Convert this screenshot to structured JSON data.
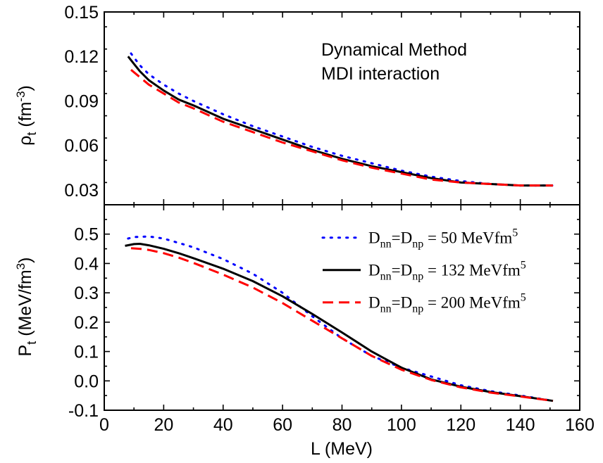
{
  "chart_data": [
    {
      "type": "line",
      "panel": "top",
      "annotation_lines": [
        "Dynamical Method",
        "MDI interaction"
      ],
      "ylabel_parts": {
        "base": "ρ",
        "sub": "t",
        "unit_open": " (fm",
        "sup": "-3",
        "unit_close": ")"
      },
      "ylim": [
        0.02,
        0.15
      ],
      "yticks": [
        0.03,
        0.06,
        0.09,
        0.12,
        0.15
      ],
      "ytick_labels": [
        "0.03",
        "0.06",
        "0.09",
        "0.12",
        "0.15"
      ],
      "xlim": [
        0,
        160
      ],
      "grid": false,
      "series": [
        {
          "key": "d50",
          "color": "#0000ff",
          "style": "dotted",
          "x": [
            9,
            12,
            15,
            20,
            25,
            30,
            40,
            50,
            60,
            70,
            80,
            90,
            100,
            110,
            120,
            130,
            140,
            151
          ],
          "y": [
            0.122,
            0.114,
            0.108,
            0.101,
            0.095,
            0.09,
            0.081,
            0.073,
            0.066,
            0.059,
            0.053,
            0.048,
            0.043,
            0.039,
            0.036,
            0.034,
            0.033,
            0.033
          ]
        },
        {
          "key": "d132",
          "color": "#000000",
          "style": "solid",
          "x": [
            8,
            10,
            12,
            15,
            20,
            25,
            30,
            40,
            50,
            60,
            70,
            80,
            90,
            100,
            110,
            120,
            130,
            140,
            151
          ],
          "y": [
            0.12,
            0.115,
            0.11,
            0.104,
            0.097,
            0.091,
            0.087,
            0.078,
            0.071,
            0.064,
            0.057,
            0.051,
            0.046,
            0.042,
            0.038,
            0.035,
            0.034,
            0.033,
            0.033
          ]
        },
        {
          "key": "d200",
          "color": "#ff0000",
          "style": "dashed",
          "x": [
            9,
            12,
            15,
            20,
            25,
            30,
            40,
            50,
            60,
            70,
            80,
            90,
            100,
            110,
            120,
            130,
            140,
            151
          ],
          "y": [
            0.111,
            0.106,
            0.101,
            0.095,
            0.089,
            0.085,
            0.076,
            0.069,
            0.062,
            0.056,
            0.05,
            0.045,
            0.041,
            0.037,
            0.035,
            0.034,
            0.033,
            0.033
          ]
        }
      ]
    },
    {
      "type": "line",
      "panel": "bottom",
      "ylabel_parts": {
        "base": "P",
        "sub": "t",
        "unit_open": " (MeV/fm",
        "sup": "3",
        "unit_close": ")"
      },
      "xlabel": "L (MeV)",
      "ylim": [
        -0.1,
        0.6
      ],
      "yticks": [
        -0.1,
        0.0,
        0.1,
        0.2,
        0.3,
        0.4,
        0.5
      ],
      "ytick_labels": [
        "-0.1",
        "0.0",
        "0.1",
        "0.2",
        "0.3",
        "0.4",
        "0.5"
      ],
      "xlim": [
        0,
        160
      ],
      "xticks": [
        0,
        20,
        40,
        60,
        80,
        100,
        120,
        140,
        160
      ],
      "xtick_labels": [
        "0",
        "20",
        "40",
        "60",
        "80",
        "100",
        "120",
        "140",
        "160"
      ],
      "grid": false,
      "legend_position": "top-right",
      "legend": [
        {
          "key": "d50",
          "color": "#0000ff",
          "style": "dotted",
          "D1": "D",
          "sub1": "nn",
          "eq": "=D",
          "sub2": "np",
          "val": " = 50   MeVfm",
          "sup": "5"
        },
        {
          "key": "d132",
          "color": "#000000",
          "style": "solid",
          "D1": "D",
          "sub1": "nn",
          "eq": "=D",
          "sub2": "np",
          "val": " = 132 MeVfm",
          "sup": "5"
        },
        {
          "key": "d200",
          "color": "#ff0000",
          "style": "dashed",
          "D1": "D",
          "sub1": "nn",
          "eq": "=D",
          "sub2": "np",
          "val": " = 200 MeVfm",
          "sup": "5"
        }
      ],
      "series": [
        {
          "key": "d50",
          "color": "#0000ff",
          "style": "dotted",
          "x": [
            8,
            10,
            15,
            20,
            25,
            30,
            40,
            50,
            60,
            70,
            80,
            90,
            100,
            110,
            120,
            130,
            140,
            151
          ],
          "y": [
            0.485,
            0.49,
            0.492,
            0.485,
            0.47,
            0.455,
            0.415,
            0.365,
            0.3,
            0.22,
            0.145,
            0.085,
            0.045,
            0.015,
            -0.015,
            -0.035,
            -0.05,
            -0.068
          ]
        },
        {
          "key": "d132",
          "color": "#000000",
          "style": "solid",
          "x": [
            7,
            10,
            12,
            15,
            20,
            25,
            30,
            40,
            50,
            60,
            70,
            80,
            90,
            100,
            110,
            120,
            130,
            140,
            151
          ],
          "y": [
            0.46,
            0.466,
            0.467,
            0.462,
            0.45,
            0.435,
            0.418,
            0.382,
            0.34,
            0.288,
            0.228,
            0.165,
            0.1,
            0.045,
            0.005,
            -0.02,
            -0.038,
            -0.052,
            -0.068
          ]
        },
        {
          "key": "d200",
          "color": "#ff0000",
          "style": "dashed",
          "x": [
            9,
            12,
            15,
            20,
            25,
            30,
            40,
            50,
            60,
            70,
            80,
            90,
            100,
            110,
            120,
            130,
            140,
            151
          ],
          "y": [
            0.452,
            0.45,
            0.446,
            0.435,
            0.42,
            0.402,
            0.362,
            0.318,
            0.265,
            0.205,
            0.145,
            0.085,
            0.038,
            0.003,
            -0.022,
            -0.04,
            -0.053,
            -0.068
          ]
        }
      ]
    }
  ]
}
